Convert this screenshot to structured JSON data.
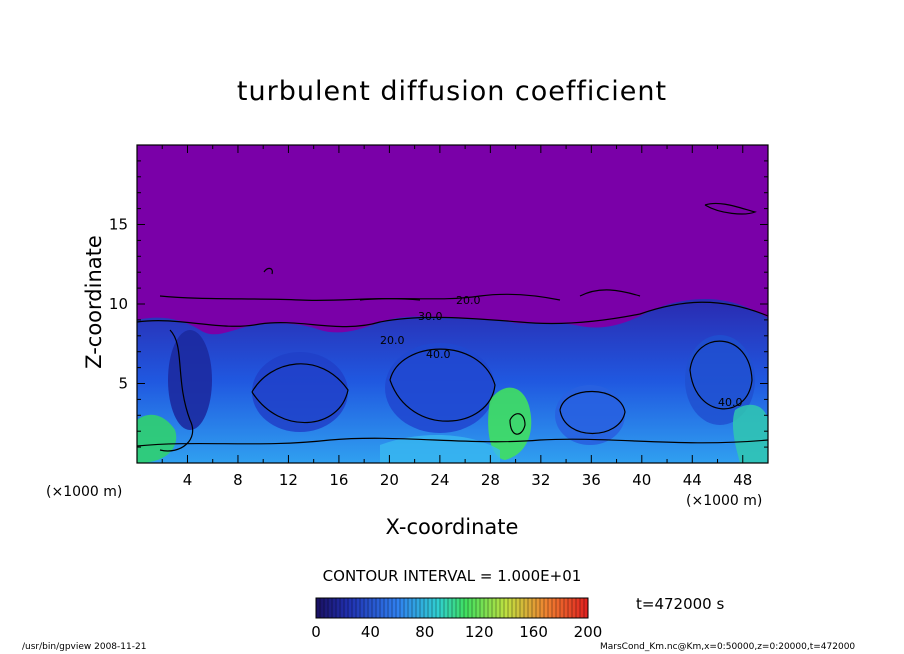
{
  "chart_data": {
    "type": "heatmap",
    "title": "turbulent diffusion coefficient",
    "xlabel": "X-coordinate",
    "ylabel": "Z-coordinate",
    "x_unit": "(×1000 m)",
    "x_ticks": [
      4,
      8,
      12,
      16,
      20,
      24,
      28,
      32,
      36,
      40,
      44,
      48
    ],
    "y_ticks": [
      5,
      10,
      15
    ],
    "xlim": [
      0,
      50
    ],
    "ylim": [
      0,
      20
    ],
    "contour_interval": "CONTOUR INTERVAL = 1.000E+01",
    "contour_labels": [
      "20.0",
      "30.0",
      "40.0",
      "20.0",
      "40.0"
    ],
    "colorbar": {
      "ticks": [
        0,
        40,
        80,
        120,
        160,
        200
      ],
      "range": [
        0,
        200
      ]
    },
    "time_label": "t=472000 s",
    "footer_left": "/usr/bin/gpview   2008-11-21",
    "footer_right": "MarsCond_Km.nc@Km,x=0:50000,z=0:20000,t=472000",
    "colors": {
      "background_field": "#7a00a8",
      "low": "#2040e0",
      "mid": "#20e060",
      "high": "#e04020"
    }
  }
}
